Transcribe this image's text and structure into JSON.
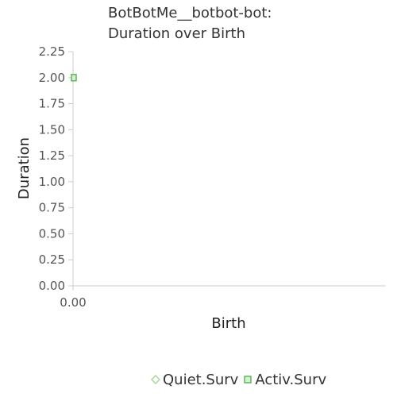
{
  "chart_data": {
    "type": "scatter",
    "title": [
      "BotBotMe__botbot-bot:",
      "Duration over Birth"
    ],
    "xlabel": "Birth",
    "ylabel": "Duration",
    "ylim": [
      0,
      2.25
    ],
    "y_ticks": [
      "0.00",
      "0.25",
      "0.50",
      "0.75",
      "1.00",
      "1.25",
      "1.50",
      "1.75",
      "2.00",
      "2.25"
    ],
    "x_ticks": [
      "0.00"
    ],
    "legend_position": "bottom",
    "series": [
      {
        "name": "Quiet.Surv",
        "marker": "diamond",
        "color": "#a6d99a",
        "points": []
      },
      {
        "name": "Activ.Surv",
        "marker": "square",
        "color": "#5cb85c",
        "points": [
          {
            "x": 0,
            "y": 2.0
          }
        ]
      }
    ]
  }
}
